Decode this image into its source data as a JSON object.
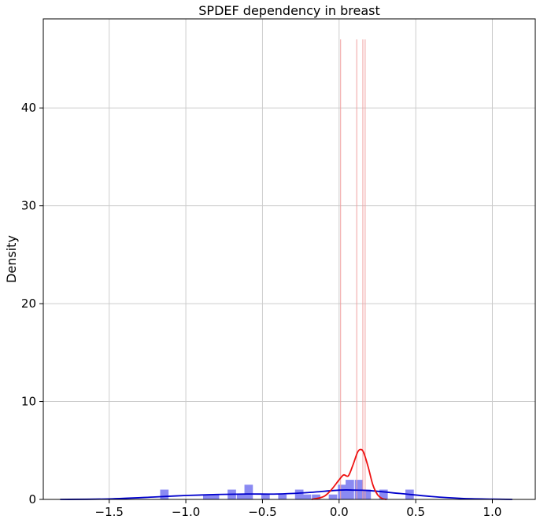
{
  "chart_data": {
    "type": "histogram-kde",
    "title": "SPDEF dependency in breast",
    "xlabel": "",
    "ylabel": "Density",
    "xlim": [
      -1.93,
      1.28
    ],
    "ylim": [
      0,
      49.1
    ],
    "grid": true,
    "x_ticks": [
      -1.5,
      -1.0,
      -0.5,
      0.0,
      0.5,
      1.0
    ],
    "x_tick_labels": [
      "−1.5",
      "−1.0",
      "−0.5",
      "0.0",
      "0.5",
      "1.0"
    ],
    "y_ticks": [
      0,
      10,
      20,
      30,
      40
    ],
    "y_tick_labels": [
      "0",
      "10",
      "20",
      "30",
      "40"
    ],
    "colors": {
      "blue_hist": "#8a8af2",
      "blue_line": "#0000cc",
      "red_line": "#ee1111",
      "red_rug": "#f0a0a0",
      "grid": "#cccccc"
    },
    "series": [
      {
        "style": "histogram",
        "color": "blue",
        "bin_width": 0.055,
        "bins": [
          {
            "x": -1.14,
            "y": 1.0
          },
          {
            "x": -0.86,
            "y": 0.5
          },
          {
            "x": -0.81,
            "y": 0.5
          },
          {
            "x": -0.7,
            "y": 1.0
          },
          {
            "x": -0.64,
            "y": 0.5
          },
          {
            "x": -0.59,
            "y": 1.5
          },
          {
            "x": -0.48,
            "y": 0.5
          },
          {
            "x": -0.37,
            "y": 0.5
          },
          {
            "x": -0.26,
            "y": 1.0
          },
          {
            "x": -0.21,
            "y": 0.5
          },
          {
            "x": -0.15,
            "y": 0.5
          },
          {
            "x": -0.04,
            "y": 0.5
          },
          {
            "x": 0.02,
            "y": 1.5
          },
          {
            "x": 0.07,
            "y": 2.0
          },
          {
            "x": 0.13,
            "y": 2.0
          },
          {
            "x": 0.18,
            "y": 1.0
          },
          {
            "x": 0.29,
            "y": 1.0
          },
          {
            "x": 0.46,
            "y": 1.0
          }
        ]
      },
      {
        "style": "kde",
        "color": "blue",
        "x": [
          -1.82,
          -1.5,
          -1.2,
          -1.0,
          -0.8,
          -0.6,
          -0.4,
          -0.2,
          0.0,
          0.1,
          0.2,
          0.4,
          0.6,
          0.8,
          1.0,
          1.13
        ],
        "y": [
          0.0,
          0.05,
          0.25,
          0.4,
          0.5,
          0.55,
          0.55,
          0.7,
          0.95,
          0.95,
          0.9,
          0.6,
          0.3,
          0.1,
          0.03,
          0.0
        ]
      },
      {
        "style": "kde",
        "color": "red",
        "x": [
          -0.18,
          -0.1,
          -0.05,
          0.0,
          0.03,
          0.06,
          0.09,
          0.12,
          0.14,
          0.16,
          0.19,
          0.22,
          0.25,
          0.28,
          0.31
        ],
        "y": [
          0.0,
          0.3,
          1.0,
          2.0,
          2.5,
          2.4,
          3.5,
          4.8,
          5.1,
          4.8,
          3.3,
          1.5,
          0.5,
          0.1,
          0.0
        ]
      },
      {
        "style": "rug",
        "color": "red",
        "height": 47,
        "x": [
          0.01,
          0.115,
          0.155,
          0.17
        ]
      }
    ]
  }
}
